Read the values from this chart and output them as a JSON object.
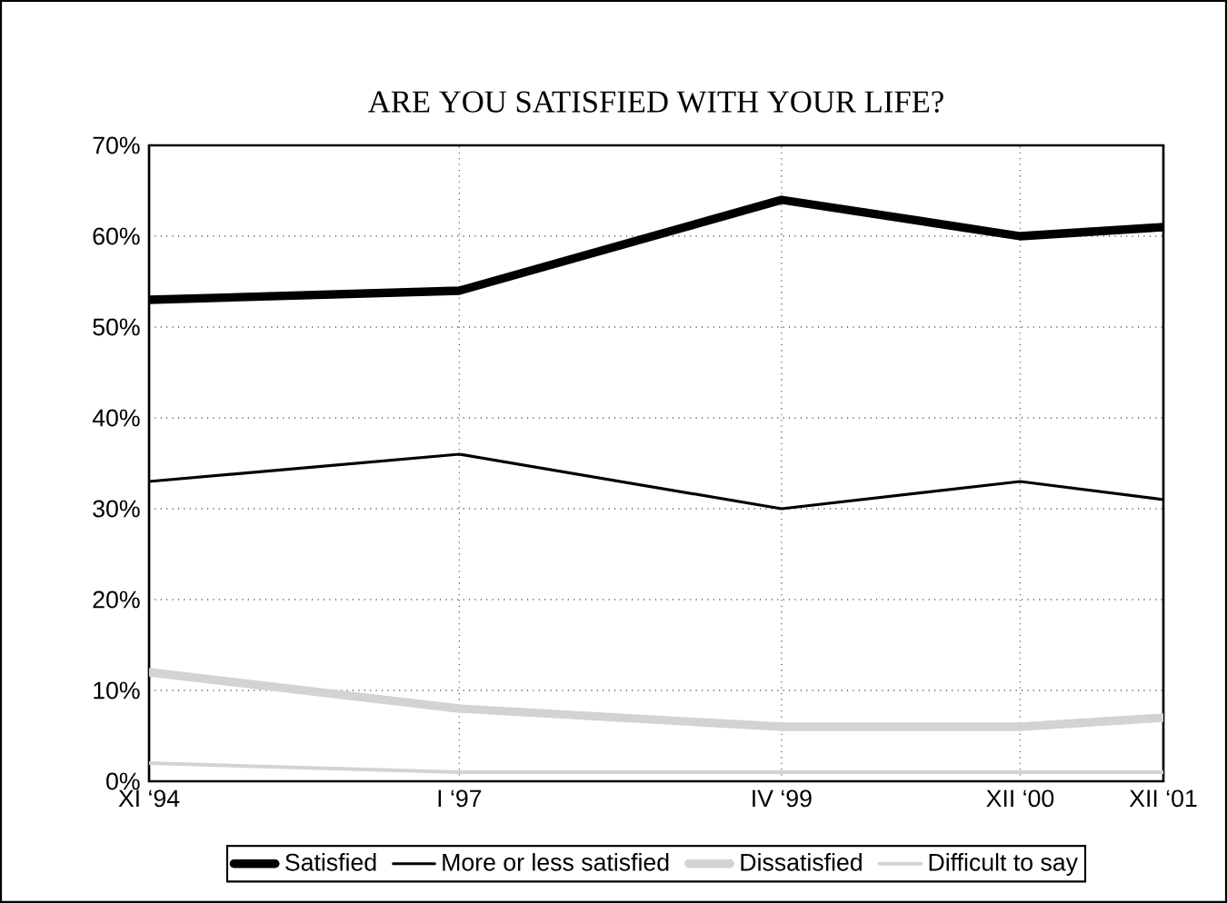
{
  "chart_data": {
    "type": "line",
    "title": "ARE YOU SATISFIED WITH YOUR LIFE?",
    "x": [
      "1994-11",
      "1997-01",
      "1999-04",
      "2000-12",
      "2001-12"
    ],
    "xlim": [
      "1994-11",
      "2001-12"
    ],
    "xticks": [
      {
        "value": "1994-11",
        "label": "XI ‘94"
      },
      {
        "value": "1997-01",
        "label": "I ‘97"
      },
      {
        "value": "1999-04",
        "label": "IV ‘99"
      },
      {
        "value": "2000-12",
        "label": "XII ‘00"
      },
      {
        "value": "2001-12",
        "label": "XII ‘01"
      }
    ],
    "ylim": [
      0,
      70
    ],
    "yticks": [
      {
        "value": 0,
        "label": "0%"
      },
      {
        "value": 10,
        "label": "10%"
      },
      {
        "value": 20,
        "label": "20%"
      },
      {
        "value": 30,
        "label": "30%"
      },
      {
        "value": 40,
        "label": "40%"
      },
      {
        "value": 50,
        "label": "50%"
      },
      {
        "value": 60,
        "label": "60%"
      },
      {
        "value": 70,
        "label": "70%"
      }
    ],
    "series": [
      {
        "name": "Satisfied",
        "color": "#000000",
        "values": [
          53,
          54,
          64,
          60,
          61
        ]
      },
      {
        "name": "More or less satisfied",
        "color": "#000000",
        "values": [
          33,
          36,
          30,
          33,
          31
        ]
      },
      {
        "name": "Dissatisfied",
        "color": "#d3d3d3",
        "values": [
          12,
          8,
          6,
          6,
          7
        ]
      },
      {
        "name": "Difficult to say",
        "color": "#d3d3d3",
        "values": [
          2,
          1,
          1,
          1,
          1
        ]
      }
    ],
    "grid": true,
    "legend": "bottom",
    "marker": "none",
    "line_style": "solid"
  }
}
